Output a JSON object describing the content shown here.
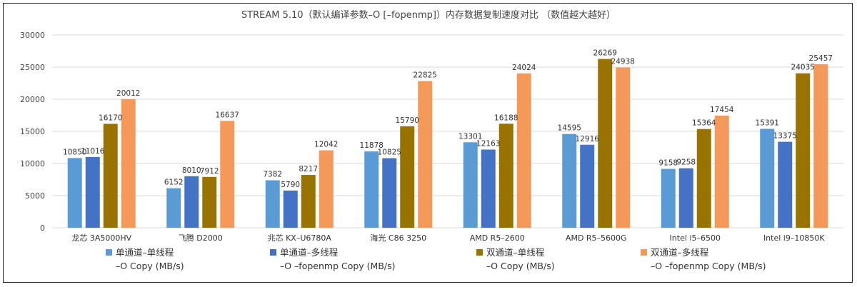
{
  "chart_data": {
    "type": "bar",
    "title": "STREAM 5.10（默认编译参数–O [–fopenmp]）内存数据复制速度对比 （数值越大越好）",
    "categories": [
      "龙芯 3A5000HV",
      "飞腾 D2000",
      "兆芯 KX–U6780A",
      "海光 C86 3250",
      "AMD R5–2600",
      "AMD R5–5600G",
      "Intel i5–6500",
      "Intel i9–10850K"
    ],
    "ylim": [
      0,
      30000
    ],
    "yticks": [
      0,
      5000,
      10000,
      15000,
      20000,
      25000,
      30000
    ],
    "grid": true,
    "legend_position": "bottom",
    "series": [
      {
        "name": "单通道–单线程 –O Copy (MB/s)",
        "legend_line1": "单通道–单线程",
        "legend_line2": "–O Copy (MB/s)",
        "color": "#5b9bd5",
        "values": [
          10850,
          6152,
          7382,
          11878,
          13301,
          14595,
          9158,
          15391
        ]
      },
      {
        "name": "单通道–多线程 –O –fopenmp Copy (MB/s)",
        "legend_line1": "单通道–多线程",
        "legend_line2": "–O –fopenmp Copy (MB/s)",
        "color": "#4472c4",
        "values": [
          11016,
          8010,
          5790,
          10825,
          12163,
          12916,
          9258,
          13375
        ]
      },
      {
        "name": "双通道–单线程 –O Copy (MB/s)",
        "legend_line1": "双通道–单线程",
        "legend_line2": "–O Copy (MB/s)",
        "color": "#997300",
        "values": [
          16170,
          7912,
          8217,
          15790,
          16188,
          26269,
          15364,
          24035
        ]
      },
      {
        "name": "双通道–多线程 –O –fopenmp Copy (MB/s)",
        "legend_line1": "双通道–多线程",
        "legend_line2": "–O –fopenmp Copy (MB/s)",
        "color": "#f4995a",
        "values": [
          20012,
          16637,
          12042,
          22825,
          24024,
          24938,
          17454,
          25457
        ]
      }
    ]
  }
}
